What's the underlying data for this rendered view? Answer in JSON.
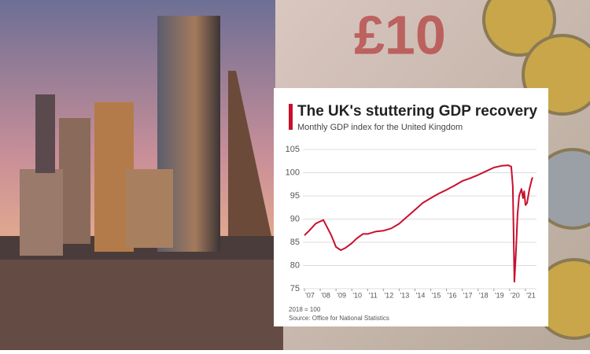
{
  "chart_data": {
    "type": "line",
    "title": "The UK's stuttering GDP recovery",
    "subtitle": "Monthly GDP index for the United Kingdom",
    "note": "2018 = 100",
    "source": "Source: Office for National Statistics",
    "x": [
      2007.0,
      2007.3,
      2007.7,
      2008.0,
      2008.2,
      2008.4,
      2008.7,
      2009.0,
      2009.3,
      2009.6,
      2010.0,
      2010.3,
      2010.7,
      2011.0,
      2011.5,
      2012.0,
      2012.5,
      2013.0,
      2013.5,
      2014.0,
      2014.5,
      2015.0,
      2015.5,
      2016.0,
      2016.5,
      2017.0,
      2017.5,
      2018.0,
      2018.5,
      2019.0,
      2019.5,
      2019.9,
      2020.1,
      2020.2,
      2020.3,
      2020.4,
      2020.5,
      2020.6,
      2020.75,
      2020.85,
      2020.92,
      2021.0,
      2021.1,
      2021.25,
      2021.4,
      2021.45
    ],
    "series": [
      {
        "name": "GDP index",
        "color": "#c8102e",
        "values": [
          86.5,
          87.5,
          89,
          89.5,
          89.8,
          88.5,
          86.5,
          84,
          83.3,
          83.8,
          84.8,
          85.8,
          86.8,
          86.8,
          87.3,
          87.5,
          88,
          89,
          90.5,
          92,
          93.5,
          94.5,
          95.5,
          96.3,
          97.2,
          98.2,
          98.8,
          99.5,
          100.3,
          101.1,
          101.5,
          101.6,
          101.3,
          97,
          76.5,
          83,
          91,
          95,
          96.5,
          94.5,
          96,
          93,
          93.5,
          96.5,
          98.5,
          99
        ]
      }
    ],
    "xlim": [
      2006.9,
      2021.7
    ],
    "xticks": [
      {
        "value": 2007,
        "label": "'07"
      },
      {
        "value": 2008,
        "label": "'08"
      },
      {
        "value": 2009,
        "label": "'09"
      },
      {
        "value": 2010,
        "label": "'10"
      },
      {
        "value": 2011,
        "label": "'11"
      },
      {
        "value": 2012,
        "label": "'12"
      },
      {
        "value": 2013,
        "label": "'13"
      },
      {
        "value": 2014,
        "label": "'14"
      },
      {
        "value": 2015,
        "label": "'15"
      },
      {
        "value": 2016,
        "label": "'16"
      },
      {
        "value": 2017,
        "label": "'17"
      },
      {
        "value": 2018,
        "label": "'18"
      },
      {
        "value": 2019,
        "label": "'19"
      },
      {
        "value": 2020,
        "label": "'20"
      },
      {
        "value": 2021,
        "label": "'21"
      }
    ],
    "ylim": [
      75,
      105
    ],
    "yticks": [
      75,
      80,
      85,
      90,
      95,
      100,
      105
    ],
    "grid": true
  }
}
